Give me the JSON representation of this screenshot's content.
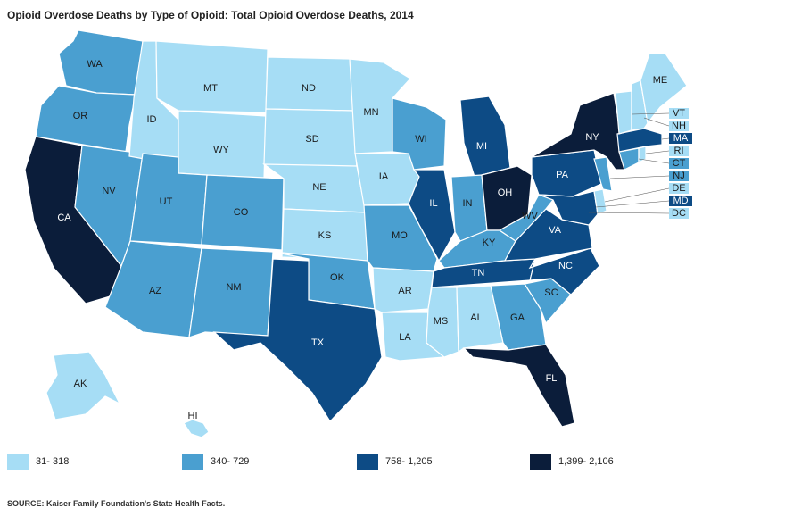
{
  "title": "Opioid Overdose Deaths by Type of Opioid: Total Opioid Overdose Deaths, 2014",
  "source": "SOURCE: Kaiser Family Foundation's State Health Facts.",
  "colors": {
    "c1": "#a6ddf5",
    "c2": "#4a9fd0",
    "c3": "#0d4b85",
    "c4": "#0b1d3a"
  },
  "legend": [
    {
      "label": "31- 318",
      "color_key": "c1"
    },
    {
      "label": "340- 729",
      "color_key": "c2"
    },
    {
      "label": "758- 1,205",
      "color_key": "c3"
    },
    {
      "label": "1,399- 2,106",
      "color_key": "c4"
    }
  ],
  "states": {
    "WA": "c2",
    "OR": "c2",
    "CA": "c4",
    "NV": "c2",
    "ID": "c1",
    "MT": "c1",
    "WY": "c1",
    "UT": "c2",
    "AZ": "c2",
    "CO": "c2",
    "NM": "c2",
    "ND": "c1",
    "SD": "c1",
    "NE": "c1",
    "KS": "c1",
    "OK": "c2",
    "TX": "c3",
    "MN": "c1",
    "IA": "c1",
    "MO": "c2",
    "AR": "c1",
    "LA": "c1",
    "WI": "c2",
    "IL": "c3",
    "MI": "c3",
    "IN": "c2",
    "OH": "c4",
    "KY": "c2",
    "TN": "c3",
    "MS": "c1",
    "AL": "c1",
    "GA": "c2",
    "FL": "c4",
    "SC": "c2",
    "NC": "c3",
    "VA": "c3",
    "WV": "c2",
    "PA": "c3",
    "NY": "c4",
    "ME": "c1",
    "VT": "c1",
    "NH": "c1",
    "MA": "c3",
    "RI": "c1",
    "CT": "c2",
    "NJ": "c2",
    "DE": "c1",
    "MD": "c3",
    "DC": "c1",
    "AK": "c1",
    "HI": "c1"
  },
  "labels": {
    "WA": "WA",
    "OR": "OR",
    "CA": "CA",
    "NV": "NV",
    "ID": "ID",
    "MT": "MT",
    "WY": "WY",
    "UT": "UT",
    "AZ": "AZ",
    "CO": "CO",
    "NM": "NM",
    "ND": "ND",
    "SD": "SD",
    "NE": "NE",
    "KS": "KS",
    "OK": "OK",
    "TX": "TX",
    "MN": "MN",
    "IA": "IA",
    "MO": "MO",
    "AR": "AR",
    "LA": "LA",
    "WI": "WI",
    "IL": "IL",
    "MI": "MI",
    "IN": "IN",
    "OH": "OH",
    "KY": "KY",
    "TN": "TN",
    "MS": "MS",
    "AL": "AL",
    "GA": "GA",
    "FL": "FL",
    "SC": "SC",
    "NC": "NC",
    "VA": "VA",
    "WV": "WV",
    "PA": "PA",
    "NY": "NY",
    "ME": "ME",
    "VT": "VT",
    "NH": "NH",
    "MA": "MA",
    "RI": "RI",
    "CT": "CT",
    "NJ": "NJ",
    "DE": "DE",
    "MD": "MD",
    "DC": "DC",
    "AK": "AK",
    "HI": "HI"
  }
}
